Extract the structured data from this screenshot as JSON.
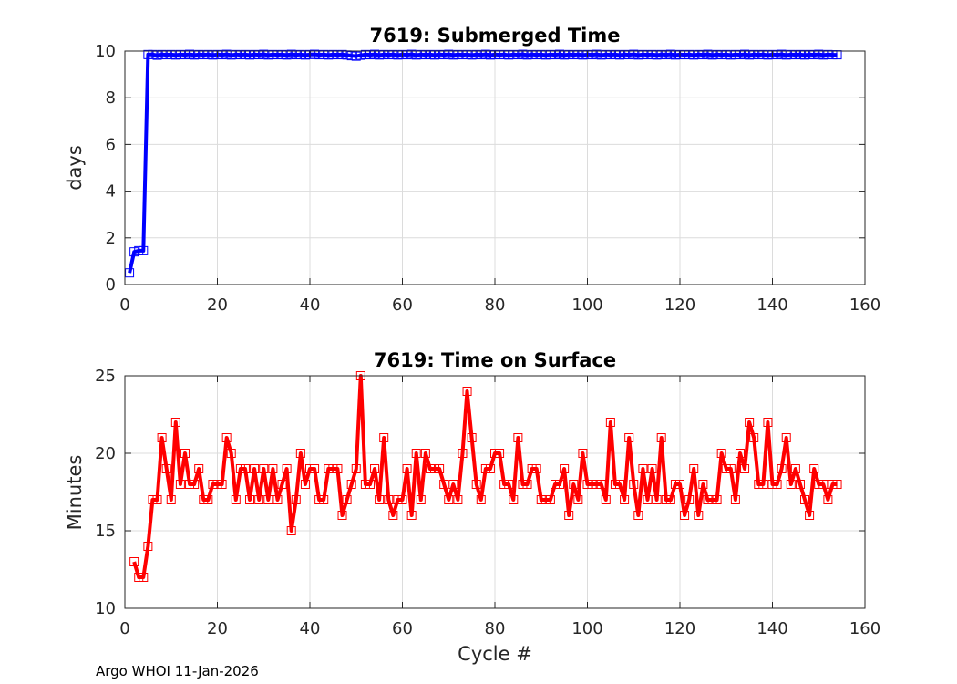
{
  "chart_data": [
    {
      "type": "line",
      "title": "7619: Submerged Time",
      "xlabel": "",
      "ylabel": "days",
      "xlim": [
        0,
        160
      ],
      "ylim": [
        0,
        10
      ],
      "xticks": [
        "0",
        "20",
        "40",
        "60",
        "80",
        "100",
        "120",
        "140",
        "160"
      ],
      "yticks": [
        "0",
        "2",
        "4",
        "6",
        "8",
        "10"
      ],
      "grid": true,
      "color": "#0000ff",
      "marker": "square",
      "series": [
        {
          "name": "Submerged Time",
          "x": [
            1,
            2,
            3,
            4,
            5,
            6,
            7,
            8,
            9,
            10,
            11,
            12,
            13,
            14,
            15,
            16,
            17,
            18,
            19,
            20,
            21,
            22,
            23,
            24,
            25,
            26,
            27,
            28,
            29,
            30,
            31,
            32,
            33,
            34,
            35,
            36,
            37,
            38,
            39,
            40,
            41,
            42,
            43,
            44,
            45,
            46,
            47,
            48,
            49,
            50,
            51,
            52,
            53,
            54,
            55,
            56,
            57,
            58,
            59,
            60,
            61,
            62,
            63,
            64,
            65,
            66,
            67,
            68,
            69,
            70,
            71,
            72,
            73,
            74,
            75,
            76,
            77,
            78,
            79,
            80,
            81,
            82,
            83,
            84,
            85,
            86,
            87,
            88,
            89,
            90,
            91,
            92,
            93,
            94,
            95,
            96,
            97,
            98,
            99,
            100,
            101,
            102,
            103,
            104,
            105,
            106,
            107,
            108,
            109,
            110,
            111,
            112,
            113,
            114,
            115,
            116,
            117,
            118,
            119,
            120,
            121,
            122,
            123,
            124,
            125,
            126,
            127,
            128,
            129,
            130,
            131,
            132,
            133,
            134,
            135,
            136,
            137,
            138,
            139,
            140,
            141,
            142,
            143,
            144,
            145,
            146,
            147,
            148,
            149,
            150,
            151,
            152,
            153,
            154
          ],
          "values": [
            0.5,
            1.4,
            1.45,
            1.45,
            9.85,
            9.85,
            9.82,
            9.85,
            9.84,
            9.85,
            9.83,
            9.85,
            9.84,
            9.86,
            9.83,
            9.85,
            9.84,
            9.85,
            9.83,
            9.85,
            9.84,
            9.86,
            9.83,
            9.85,
            9.84,
            9.85,
            9.83,
            9.85,
            9.84,
            9.86,
            9.83,
            9.85,
            9.84,
            9.85,
            9.83,
            9.86,
            9.84,
            9.85,
            9.83,
            9.85,
            9.86,
            9.84,
            9.85,
            9.83,
            9.85,
            9.84,
            9.85,
            9.83,
            9.8,
            9.78,
            9.82,
            9.85,
            9.84,
            9.86,
            9.83,
            9.85,
            9.84,
            9.85,
            9.83,
            9.85,
            9.84,
            9.86,
            9.83,
            9.85,
            9.84,
            9.85,
            9.83,
            9.85,
            9.84,
            9.86,
            9.83,
            9.85,
            9.84,
            9.85,
            9.83,
            9.85,
            9.84,
            9.86,
            9.83,
            9.85,
            9.84,
            9.85,
            9.83,
            9.85,
            9.84,
            9.86,
            9.83,
            9.85,
            9.84,
            9.85,
            9.83,
            9.85,
            9.84,
            9.86,
            9.83,
            9.85,
            9.84,
            9.85,
            9.83,
            9.85,
            9.84,
            9.86,
            9.83,
            9.85,
            9.84,
            9.85,
            9.83,
            9.85,
            9.84,
            9.86,
            9.83,
            9.85,
            9.84,
            9.85,
            9.83,
            9.85,
            9.84,
            9.86,
            9.83,
            9.85,
            9.84,
            9.85,
            9.83,
            9.85,
            9.84,
            9.86,
            9.83,
            9.85,
            9.84,
            9.85,
            9.83,
            9.85,
            9.84,
            9.86,
            9.83,
            9.85,
            9.84,
            9.85,
            9.83,
            9.85,
            9.84,
            9.86,
            9.83,
            9.85,
            9.84,
            9.85,
            9.83,
            9.85,
            9.84,
            9.86,
            9.83,
            9.85,
            9.84,
            9.84
          ]
        }
      ]
    },
    {
      "type": "line",
      "title": "7619: Time on Surface",
      "xlabel": "Cycle #",
      "ylabel": "Minutes",
      "xlim": [
        0,
        160
      ],
      "ylim": [
        10,
        25
      ],
      "xticks": [
        "0",
        "20",
        "40",
        "60",
        "80",
        "100",
        "120",
        "140",
        "160"
      ],
      "yticks": [
        "10",
        "15",
        "20",
        "25"
      ],
      "grid": true,
      "color": "#ff0000",
      "marker": "square",
      "series": [
        {
          "name": "Time on Surface",
          "x": [
            2,
            3,
            4,
            5,
            6,
            7,
            8,
            9,
            10,
            11,
            12,
            13,
            14,
            15,
            16,
            17,
            18,
            19,
            20,
            21,
            22,
            23,
            24,
            25,
            26,
            27,
            28,
            29,
            30,
            31,
            32,
            33,
            34,
            35,
            36,
            37,
            38,
            39,
            40,
            41,
            42,
            43,
            44,
            45,
            46,
            47,
            48,
            49,
            50,
            51,
            52,
            53,
            54,
            55,
            56,
            57,
            58,
            59,
            60,
            61,
            62,
            63,
            64,
            65,
            66,
            67,
            68,
            69,
            70,
            71,
            72,
            73,
            74,
            75,
            76,
            77,
            78,
            79,
            80,
            81,
            82,
            83,
            84,
            85,
            86,
            87,
            88,
            89,
            90,
            91,
            92,
            93,
            94,
            95,
            96,
            97,
            98,
            99,
            100,
            101,
            102,
            103,
            104,
            105,
            106,
            107,
            108,
            109,
            110,
            111,
            112,
            113,
            114,
            115,
            116,
            117,
            118,
            119,
            120,
            121,
            122,
            123,
            124,
            125,
            126,
            127,
            128,
            129,
            130,
            131,
            132,
            133,
            134,
            135,
            136,
            137,
            138,
            139,
            140,
            141,
            142,
            143,
            144,
            145,
            146,
            147,
            148,
            149,
            150,
            151,
            152,
            153,
            154
          ],
          "values": [
            13,
            12,
            12,
            14,
            17,
            17,
            21,
            19,
            17,
            22,
            18,
            20,
            18,
            18,
            19,
            17,
            17,
            18,
            18,
            18,
            21,
            20,
            17,
            19,
            19,
            17,
            19,
            17,
            19,
            17,
            19,
            17,
            18,
            19,
            15,
            17,
            20,
            18,
            19,
            19,
            17,
            17,
            19,
            19,
            19,
            16,
            17,
            18,
            19,
            25,
            18,
            18,
            19,
            17,
            21,
            17,
            16,
            17,
            17,
            19,
            16,
            20,
            17,
            20,
            19,
            19,
            19,
            18,
            17,
            18,
            17,
            20,
            24,
            21,
            18,
            17,
            19,
            19,
            20,
            20,
            18,
            18,
            17,
            21,
            18,
            18,
            19,
            19,
            17,
            17,
            17,
            18,
            18,
            19,
            16,
            18,
            17,
            20,
            18,
            18,
            18,
            18,
            17,
            22,
            18,
            18,
            17,
            21,
            18,
            16,
            19,
            17,
            19,
            17,
            21,
            17,
            17,
            18,
            18,
            16,
            17,
            19,
            16,
            18,
            17,
            17,
            17,
            20,
            19,
            19,
            17,
            20,
            19,
            22,
            21,
            18,
            18,
            22,
            18,
            18,
            19,
            21,
            18,
            19,
            18,
            17,
            16,
            19,
            18,
            18,
            17,
            18,
            18
          ]
        }
      ]
    }
  ],
  "footer": "Argo WHOI 11-Jan-2026"
}
